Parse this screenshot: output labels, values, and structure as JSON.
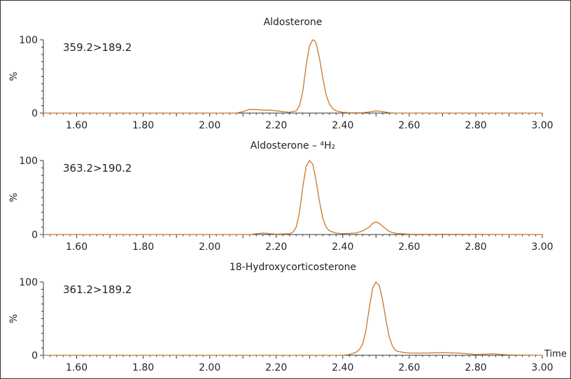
{
  "frame_color": "#333333",
  "trace_color": "#c8782a",
  "xlabel": "Time",
  "chart_data": [
    {
      "type": "line",
      "title": "Aldosterone",
      "transition": "359.2>189.2",
      "ylabel": "%",
      "xlim": [
        1.5,
        3.0
      ],
      "ylim": [
        0,
        100
      ],
      "yticks": [
        "0",
        "100"
      ],
      "xticks": [
        "1.60",
        "1.80",
        "2.00",
        "2.20",
        "2.40",
        "2.60",
        "2.80",
        "3.00"
      ],
      "series": [
        {
          "x": [
            1.5,
            2.08,
            2.1,
            2.12,
            2.14,
            2.16,
            2.18,
            2.2,
            2.22,
            2.24,
            2.26,
            2.27,
            2.28,
            2.29,
            2.3,
            2.31,
            2.315,
            2.32,
            2.33,
            2.34,
            2.35,
            2.36,
            2.37,
            2.38,
            2.4,
            2.42,
            2.46,
            2.48,
            2.5,
            2.52,
            2.54,
            2.56,
            3.0
          ],
          "y": [
            0,
            0,
            2,
            5,
            5,
            4,
            4,
            3,
            2,
            1,
            3,
            10,
            30,
            65,
            92,
            100,
            99,
            95,
            75,
            48,
            25,
            12,
            6,
            3,
            1,
            0.5,
            0.5,
            1.5,
            3,
            2,
            0.5,
            0,
            0
          ]
        }
      ]
    },
    {
      "type": "line",
      "title": "Aldosterone – ⁴H₂",
      "transition": "363.2>190.2",
      "ylabel": "%",
      "xlim": [
        1.5,
        3.0
      ],
      "ylim": [
        0,
        100
      ],
      "yticks": [
        "0",
        "100"
      ],
      "xticks": [
        "1.60",
        "1.80",
        "2.00",
        "2.20",
        "2.40",
        "2.60",
        "2.80",
        "3.00"
      ],
      "series": [
        {
          "x": [
            1.5,
            2.12,
            2.14,
            2.16,
            2.18,
            2.2,
            2.24,
            2.25,
            2.26,
            2.27,
            2.28,
            2.29,
            2.3,
            2.31,
            2.32,
            2.33,
            2.34,
            2.35,
            2.36,
            2.38,
            2.4,
            2.44,
            2.46,
            2.48,
            2.49,
            2.5,
            2.51,
            2.52,
            2.54,
            2.56,
            2.6,
            3.0
          ],
          "y": [
            0,
            0,
            1,
            2,
            1,
            0.5,
            1,
            3,
            10,
            30,
            65,
            92,
            100,
            95,
            72,
            45,
            22,
            10,
            5,
            2,
            1,
            2,
            5,
            10,
            15,
            17,
            15,
            11,
            4,
            1.5,
            0.5,
            0
          ]
        }
      ]
    },
    {
      "type": "line",
      "title": "18-Hydroxycorticosterone",
      "transition": "361.2>189.2",
      "ylabel": "%",
      "xlim": [
        1.5,
        3.0
      ],
      "ylim": [
        0,
        100
      ],
      "yticks": [
        "0",
        "100"
      ],
      "xticks": [
        "1.60",
        "1.80",
        "2.00",
        "2.20",
        "2.40",
        "2.60",
        "2.80",
        "3.00"
      ],
      "series": [
        {
          "x": [
            1.5,
            2.4,
            2.42,
            2.44,
            2.45,
            2.46,
            2.47,
            2.48,
            2.49,
            2.5,
            2.51,
            2.52,
            2.53,
            2.54,
            2.55,
            2.56,
            2.58,
            2.6,
            2.65,
            2.7,
            2.75,
            2.78,
            2.8,
            2.85,
            2.88,
            2.9,
            3.0
          ],
          "y": [
            0,
            0,
            1,
            4,
            8,
            15,
            35,
            65,
            92,
            100,
            95,
            75,
            48,
            25,
            12,
            6,
            4,
            3,
            3,
            3.5,
            3,
            2,
            1,
            2,
            1,
            0.5,
            0
          ]
        }
      ]
    }
  ]
}
